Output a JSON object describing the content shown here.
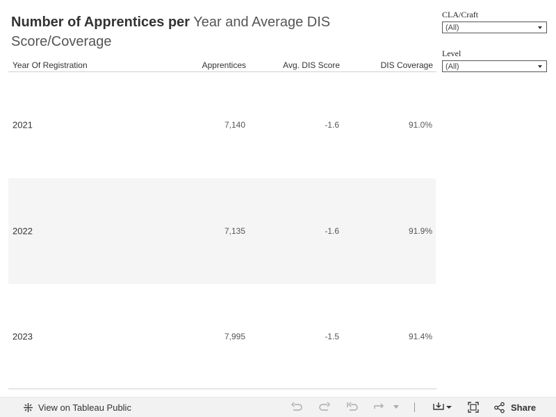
{
  "title": {
    "bold": "Number of Apprentices per",
    "rest": " Year and Average DIS Score/Coverage"
  },
  "table": {
    "headers": [
      "Year Of Registration",
      "Apprentices",
      "Avg. DIS Score",
      "DIS Coverage"
    ],
    "rows": [
      {
        "year": "2021",
        "apprentices": "7,140",
        "score": "-1.6",
        "coverage": "91.0%"
      },
      {
        "year": "2022",
        "apprentices": "7,135",
        "score": "-1.6",
        "coverage": "91.9%"
      },
      {
        "year": "2023",
        "apprentices": "7,995",
        "score": "-1.5",
        "coverage": "91.4%"
      }
    ]
  },
  "filters": [
    {
      "label": "CLA/Craft",
      "value": "(All)"
    },
    {
      "label": "Level",
      "value": "(All)"
    }
  ],
  "toolbar": {
    "view_label": "View on Tableau Public",
    "share_label": "Share"
  }
}
